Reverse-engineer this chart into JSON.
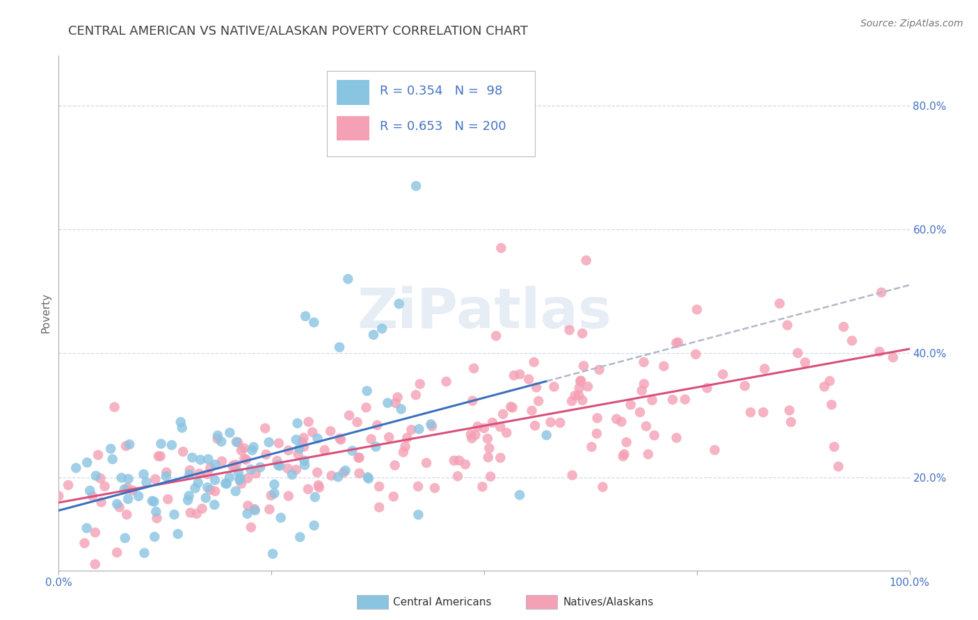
{
  "title": "CENTRAL AMERICAN VS NATIVE/ALASKAN POVERTY CORRELATION CHART",
  "source": "Source: ZipAtlas.com",
  "ylabel": "Poverty",
  "xlim": [
    0.0,
    1.0
  ],
  "ylim": [
    0.05,
    0.88
  ],
  "yticks": [
    0.2,
    0.4,
    0.6,
    0.8
  ],
  "yticklabels": [
    "20.0%",
    "40.0%",
    "60.0%",
    "80.0%"
  ],
  "xticks": [
    0.0,
    0.25,
    0.5,
    0.75,
    1.0
  ],
  "xticklabels": [
    "0.0%",
    "",
    "",
    "",
    "100.0%"
  ],
  "blue_color": "#89c4e1",
  "pink_color": "#f4a0b5",
  "blue_line_color": "#3a6fbf",
  "pink_line_color": "#d94f7a",
  "dashed_line_color": "#b0b8c8",
  "R_blue": 0.354,
  "N_blue": 98,
  "R_pink": 0.653,
  "N_pink": 200,
  "watermark": "ZiPatlas",
  "background_color": "#ffffff",
  "grid_color": "#ccdde8",
  "title_color": "#404040",
  "label_color": "#4472c4",
  "title_fontsize": 13,
  "axis_label_fontsize": 11,
  "tick_fontsize": 11,
  "legend_fontsize": 13,
  "source_fontsize": 10,
  "seed": 42
}
